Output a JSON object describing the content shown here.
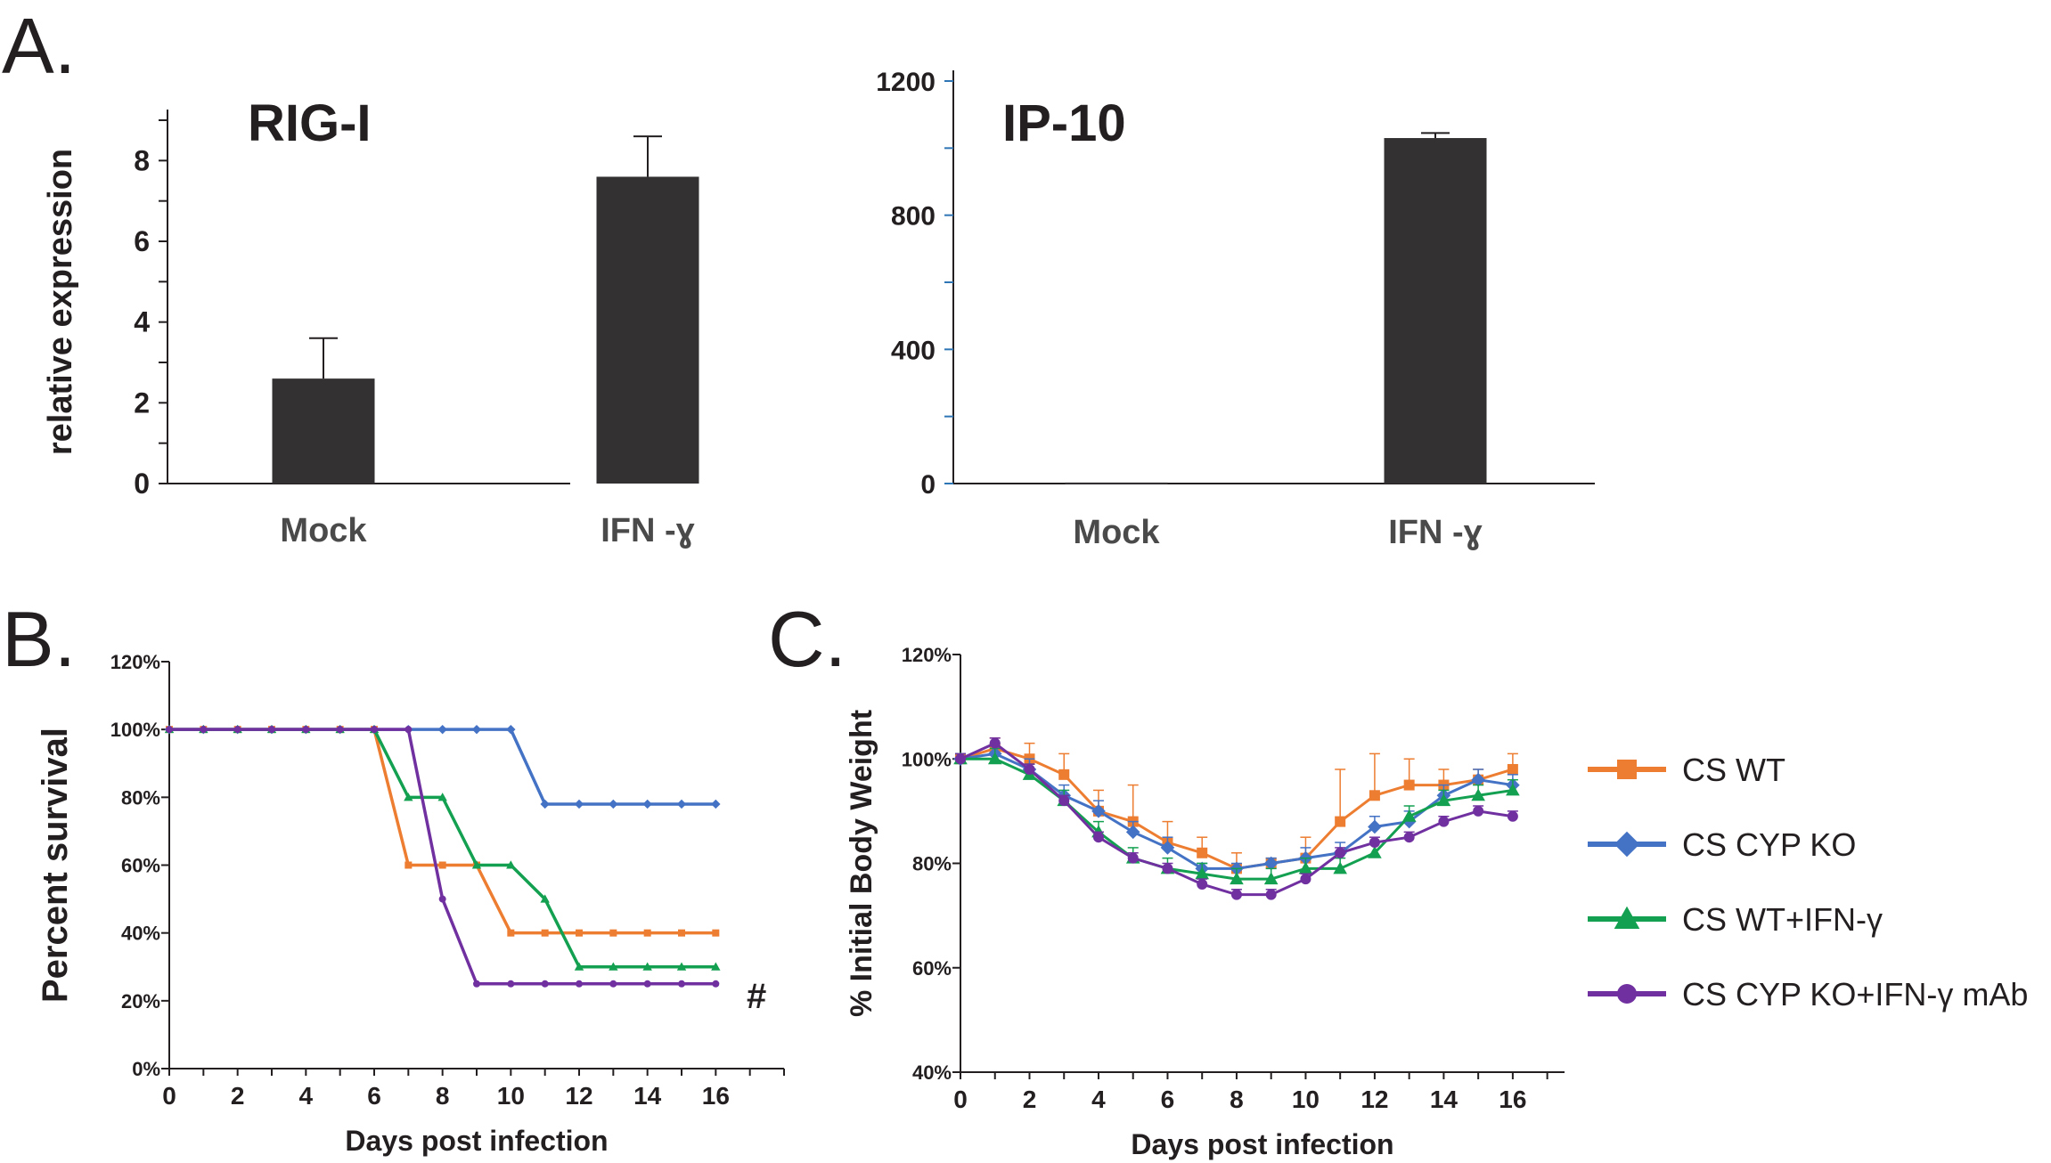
{
  "panels": {
    "a": "A.",
    "b": "B.",
    "c": "C."
  },
  "chart_data": [
    {
      "type": "bar",
      "title": "RIG-I",
      "ylabel": "relative expression",
      "categories": [
        "Mock",
        "IFN -ɣ"
      ],
      "values": [
        2.6,
        7.6
      ],
      "errors": [
        1.0,
        1.0
      ],
      "ylim": [
        0,
        9
      ],
      "yticks": [
        "0",
        "2",
        "4",
        "6",
        "8"
      ],
      "ytick_values": [
        0,
        2,
        4,
        6,
        8
      ]
    },
    {
      "type": "bar",
      "title": "IP-10",
      "ylabel": "",
      "categories": [
        "Mock",
        "IFN -ɣ"
      ],
      "values": [
        3,
        1030
      ],
      "errors": [
        0,
        15
      ],
      "ylim": [
        0,
        1200
      ],
      "yticks": [
        "0",
        "400",
        "800",
        "1200"
      ],
      "ytick_values": [
        0,
        400,
        800,
        1200
      ]
    },
    {
      "type": "line",
      "ylabel": "Percent survival",
      "xlabel": "Days post infection",
      "xlim": [
        0,
        18
      ],
      "ylim": [
        0,
        1.2
      ],
      "xticks": [
        "0",
        "2",
        "4",
        "6",
        "8",
        "10",
        "12",
        "14",
        "16"
      ],
      "xtick_values": [
        0,
        2,
        4,
        6,
        8,
        10,
        12,
        14,
        16
      ],
      "yticks": [
        "0%",
        "20%",
        "40%",
        "60%",
        "80%",
        "100%",
        "120%"
      ],
      "ytick_values": [
        0,
        0.2,
        0.4,
        0.6,
        0.8,
        1.0,
        1.2
      ],
      "annotation": "#",
      "series": [
        {
          "name": "CS WT",
          "color": "#ed7d31",
          "marker": "square",
          "x": [
            0,
            1,
            2,
            3,
            4,
            5,
            6,
            7,
            8,
            9,
            10,
            11,
            12,
            13,
            14,
            15,
            16
          ],
          "y": [
            1.0,
            1.0,
            1.0,
            1.0,
            1.0,
            1.0,
            1.0,
            0.6,
            0.6,
            0.6,
            0.4,
            0.4,
            0.4,
            0.4,
            0.4,
            0.4,
            0.4
          ]
        },
        {
          "name": "CS CYP KO",
          "color": "#4472c4",
          "marker": "diamond",
          "x": [
            0,
            1,
            2,
            3,
            4,
            5,
            6,
            7,
            8,
            9,
            10,
            11,
            12,
            13,
            14,
            15,
            16
          ],
          "y": [
            1.0,
            1.0,
            1.0,
            1.0,
            1.0,
            1.0,
            1.0,
            1.0,
            1.0,
            1.0,
            1.0,
            0.78,
            0.78,
            0.78,
            0.78,
            0.78,
            0.78
          ]
        },
        {
          "name": "CS WT+IFN-γ",
          "color": "#13a050",
          "marker": "triangle",
          "x": [
            0,
            1,
            2,
            3,
            4,
            5,
            6,
            7,
            8,
            9,
            10,
            11,
            12,
            13,
            14,
            15,
            16
          ],
          "y": [
            1.0,
            1.0,
            1.0,
            1.0,
            1.0,
            1.0,
            1.0,
            0.8,
            0.8,
            0.6,
            0.6,
            0.5,
            0.3,
            0.3,
            0.3,
            0.3,
            0.3
          ]
        },
        {
          "name": "CS CYP KO+IFN-γ mAb",
          "color": "#7030a0",
          "marker": "circle",
          "x": [
            0,
            1,
            2,
            3,
            4,
            5,
            6,
            7,
            8,
            9,
            10,
            11,
            12,
            13,
            14,
            15,
            16
          ],
          "y": [
            1.0,
            1.0,
            1.0,
            1.0,
            1.0,
            1.0,
            1.0,
            1.0,
            0.5,
            0.25,
            0.25,
            0.25,
            0.25,
            0.25,
            0.25,
            0.25,
            0.25
          ]
        }
      ]
    },
    {
      "type": "line",
      "ylabel": "% Initial Body Weight",
      "xlabel": "Days post infection",
      "xlim": [
        0,
        17.5
      ],
      "ylim": [
        0.4,
        1.2
      ],
      "xticks": [
        "0",
        "2",
        "4",
        "6",
        "8",
        "10",
        "12",
        "14",
        "16"
      ],
      "xtick_values": [
        0,
        2,
        4,
        6,
        8,
        10,
        12,
        14,
        16
      ],
      "yticks": [
        "40%",
        "60%",
        "80%",
        "100%",
        "120%"
      ],
      "ytick_values": [
        0.4,
        0.6,
        0.8,
        1.0,
        1.2
      ],
      "legend_position": "right",
      "series": [
        {
          "name": "CS WT",
          "color": "#ed7d31",
          "marker": "square",
          "x": [
            0,
            1,
            2,
            3,
            4,
            5,
            6,
            7,
            8,
            9,
            10,
            11,
            12,
            13,
            14,
            15,
            16
          ],
          "y": [
            1.0,
            1.02,
            1.0,
            0.97,
            0.9,
            0.88,
            0.84,
            0.82,
            0.79,
            0.8,
            0.81,
            0.88,
            0.93,
            0.95,
            0.95,
            0.96,
            0.98
          ],
          "err": [
            0.01,
            0.02,
            0.03,
            0.04,
            0.04,
            0.07,
            0.04,
            0.03,
            0.03,
            0.01,
            0.04,
            0.1,
            0.08,
            0.05,
            0.03,
            0.02,
            0.03
          ]
        },
        {
          "name": "CS CYP KO",
          "color": "#4472c4",
          "marker": "diamond",
          "x": [
            0,
            1,
            2,
            3,
            4,
            5,
            6,
            7,
            8,
            9,
            10,
            11,
            12,
            13,
            14,
            15,
            16
          ],
          "y": [
            1.0,
            1.01,
            0.98,
            0.93,
            0.9,
            0.86,
            0.83,
            0.79,
            0.79,
            0.8,
            0.81,
            0.82,
            0.87,
            0.88,
            0.93,
            0.96,
            0.95
          ],
          "err": [
            0.01,
            0.02,
            0.02,
            0.02,
            0.02,
            0.02,
            0.02,
            0.01,
            0.01,
            0.01,
            0.02,
            0.02,
            0.02,
            0.02,
            0.02,
            0.02,
            0.02
          ]
        },
        {
          "name": "CS WT+IFN-γ",
          "color": "#13a050",
          "marker": "triangle",
          "x": [
            0,
            1,
            2,
            3,
            4,
            5,
            6,
            7,
            8,
            9,
            10,
            11,
            12,
            13,
            14,
            15,
            16
          ],
          "y": [
            1.0,
            1.0,
            0.97,
            0.92,
            0.86,
            0.81,
            0.79,
            0.78,
            0.77,
            0.77,
            0.79,
            0.79,
            0.82,
            0.89,
            0.92,
            0.93,
            0.94
          ],
          "err": [
            0.01,
            0.02,
            0.02,
            0.02,
            0.02,
            0.02,
            0.02,
            0.02,
            0.02,
            0.02,
            0.02,
            0.02,
            0.02,
            0.02,
            0.02,
            0.02,
            0.02
          ]
        },
        {
          "name": "CS CYP KO+IFN-γ mAb",
          "color": "#7030a0",
          "marker": "circle",
          "x": [
            0,
            1,
            2,
            3,
            4,
            5,
            6,
            7,
            8,
            9,
            10,
            11,
            12,
            13,
            14,
            15,
            16
          ],
          "y": [
            1.0,
            1.03,
            0.98,
            0.92,
            0.85,
            0.81,
            0.79,
            0.76,
            0.74,
            0.74,
            0.77,
            0.82,
            0.84,
            0.85,
            0.88,
            0.9,
            0.89
          ],
          "err": [
            0.01,
            0.01,
            0.01,
            0.01,
            0.01,
            0.01,
            0.01,
            0.01,
            0.01,
            0.01,
            0.01,
            0.01,
            0.01,
            0.01,
            0.01,
            0.01,
            0.01
          ]
        }
      ]
    }
  ]
}
